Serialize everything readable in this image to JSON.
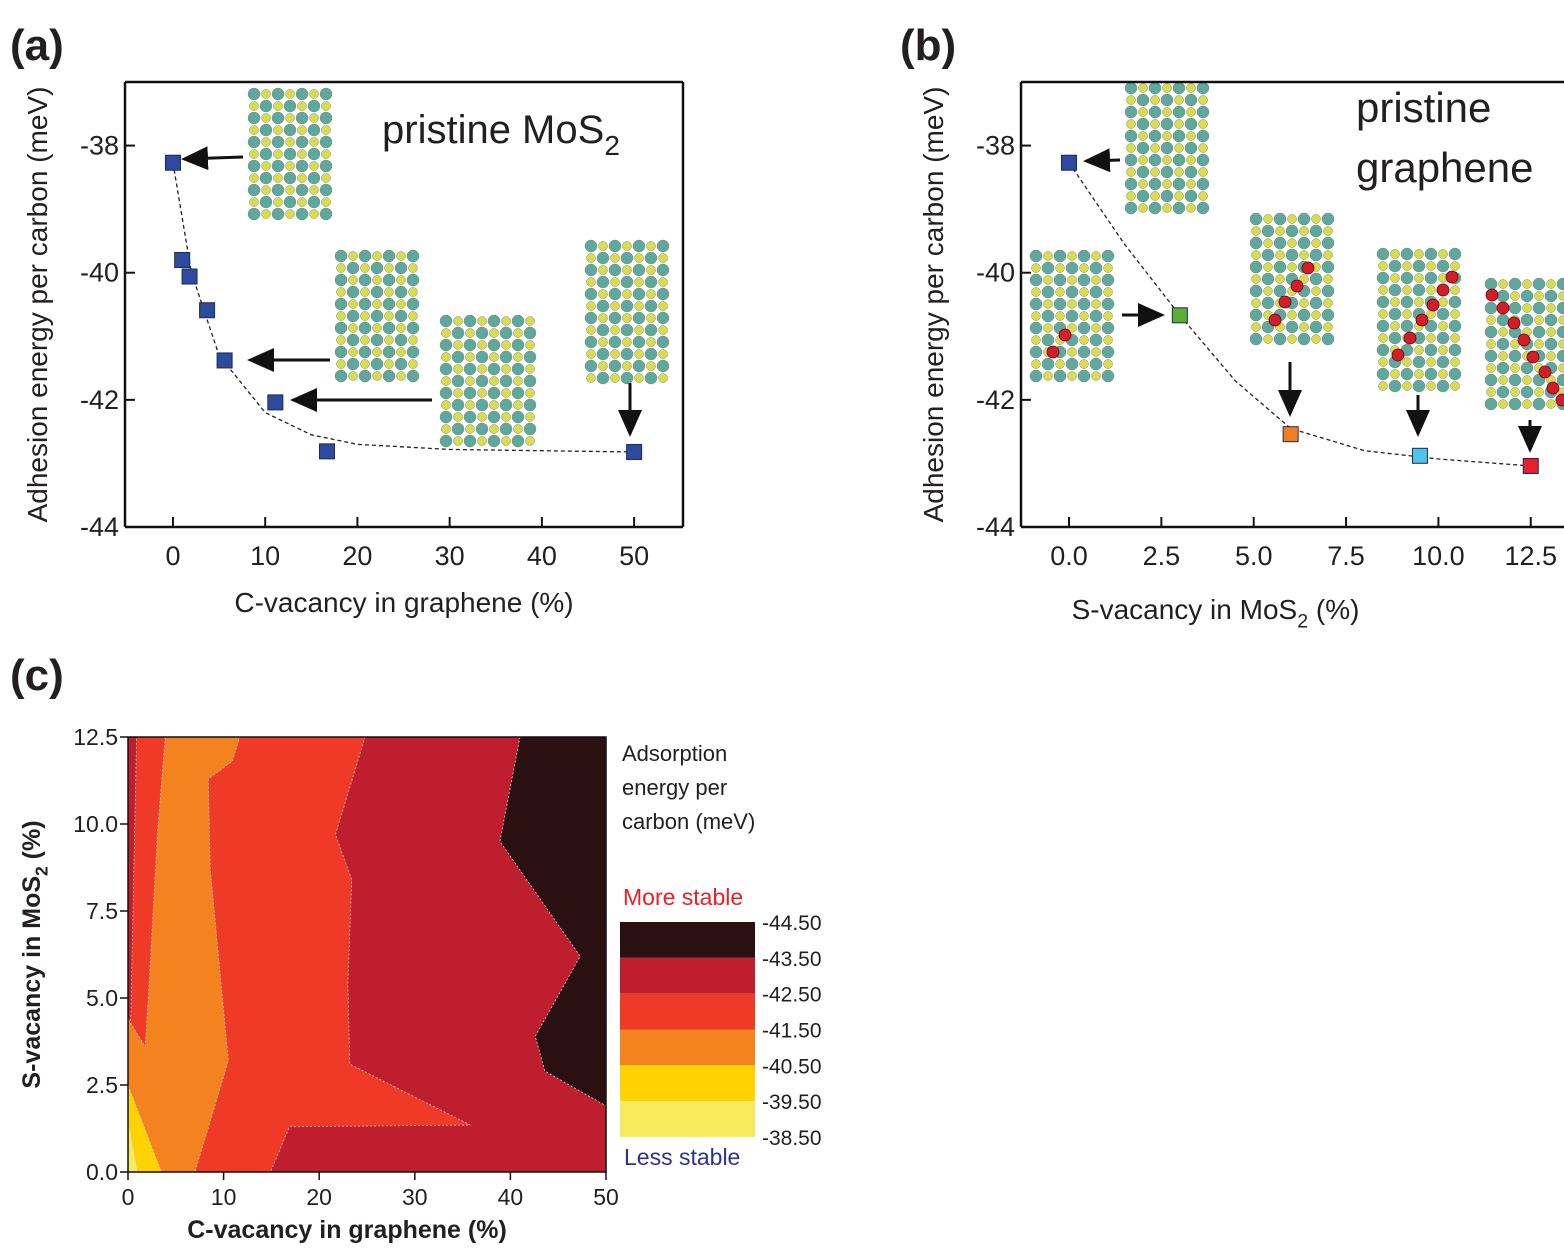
{
  "chart_data": [
    {
      "type": "scatter",
      "panel": "(a)",
      "annotation": {
        "text": "pristine MoS",
        "sub": "2"
      },
      "xlabel": {
        "text": "C-vacancy in graphene (%)"
      },
      "ylabel": {
        "text": "Adhesion energy per carbon (meV)"
      },
      "x": [
        0,
        1,
        1.8,
        3.7,
        5.6,
        11.1,
        16.7,
        50
      ],
      "series": [
        {
          "color": "#2e4a9e",
          "values": [
            -38.27,
            -39.8,
            -40.06,
            -40.59,
            -41.38,
            -42.04,
            -42.81,
            -42.82
          ]
        }
      ],
      "fit": {
        "x": [
          0,
          2,
          5,
          10,
          15,
          20,
          30,
          50
        ],
        "values": [
          -38.27,
          -40.0,
          -41.3,
          -42.2,
          -42.55,
          -42.7,
          -42.78,
          -42.82
        ]
      },
      "xlim": [
        -5.2,
        55.3
      ],
      "ylim": [
        -44,
        -37
      ],
      "xticks": [
        0,
        10,
        20,
        30,
        40,
        50
      ],
      "yticks": [
        -44,
        -42,
        -40,
        -38
      ]
    },
    {
      "type": "scatter",
      "panel": "(b)",
      "annotation": [
        "pristine",
        "graphene"
      ],
      "xlabel": {
        "text": "S-vacancy in MoS",
        "sub": "2",
        "after": " (%)"
      },
      "ylabel": {
        "text": "Adhesion energy per carbon (meV)"
      },
      "x": [
        0,
        3.0,
        6.0,
        9.5,
        12.5
      ],
      "series": [
        {
          "colors": [
            "#2e4a9e",
            "#5ab031",
            "#f07f22",
            "#4fc3e8",
            "#e8202a"
          ],
          "values": [
            -38.27,
            -40.67,
            -42.54,
            -42.88,
            -43.04
          ]
        }
      ],
      "fit": {
        "x": [
          0,
          1.5,
          3.0,
          4.5,
          6.0,
          8.0,
          10.0,
          12.5
        ],
        "values": [
          -38.27,
          -39.55,
          -40.67,
          -41.7,
          -42.45,
          -42.8,
          -42.93,
          -43.04
        ]
      },
      "xlim": [
        -1.3,
        13.4
      ],
      "ylim": [
        -44,
        -37
      ],
      "xticks": [
        {
          "value": 0,
          "label": "0.0"
        },
        2.5,
        {
          "value": 5,
          "label": "5.0"
        },
        7.5,
        {
          "value": 10,
          "label": "10.0"
        },
        12.5
      ],
      "yticks": [
        -44,
        -42,
        -40,
        -38
      ]
    },
    {
      "type": "contour",
      "panel": "(c)",
      "xlabel": {
        "text": "C-vacancy in graphene (%)"
      },
      "ylabel": {
        "text": "S-vacancy in MoS",
        "sub": "2",
        "after": " (%)"
      },
      "xlim": [
        0,
        50
      ],
      "ylim": [
        0,
        12.5
      ],
      "xticks": [
        0,
        10,
        20,
        30,
        40,
        50
      ],
      "yticks": [
        {
          "value": 0,
          "label": "0.0"
        },
        2.5,
        {
          "value": 5,
          "label": "5.0"
        },
        7.5,
        {
          "value": 10,
          "label": "10.0"
        },
        12.5
      ],
      "regions": [
        {
          "color": "#be1e2d",
          "points": [
            [
              0,
              0
            ],
            [
              50,
              0
            ],
            [
              50,
              12.5
            ],
            [
              0,
              12.5
            ]
          ]
        },
        {
          "color": "#2b1012",
          "points": [
            [
              41,
              12.5
            ],
            [
              38.9,
              9.5
            ],
            [
              47.3,
              6.2
            ],
            [
              42.6,
              3.9
            ],
            [
              43.6,
              2.9
            ],
            [
              50,
              1.9
            ],
            [
              50,
              12.5
            ]
          ]
        },
        {
          "color": "#ee3a27",
          "points": [
            [
              0,
              0
            ],
            [
              14.9,
              0
            ],
            [
              16.9,
              1.3
            ],
            [
              35.8,
              1.35
            ],
            [
              23.2,
              3.1
            ],
            [
              23.0,
              5.4
            ],
            [
              23.4,
              8.4
            ],
            [
              21.7,
              9.7
            ],
            [
              24.8,
              12.5
            ],
            [
              0.9,
              12.5
            ],
            [
              0.3,
              4.5
            ],
            [
              0,
              3.6
            ]
          ]
        },
        {
          "color": "#f4821f",
          "points": [
            [
              0,
              0
            ],
            [
              7,
              0
            ],
            [
              10.5,
              3.2
            ],
            [
              8.6,
              8.7
            ],
            [
              8.4,
              11.3
            ],
            [
              10.9,
              11.8
            ],
            [
              11.7,
              12.5
            ],
            [
              3.9,
              12.5
            ],
            [
              3.1,
              9.8
            ],
            [
              2.1,
              4.9
            ],
            [
              1.8,
              3.6
            ],
            [
              0,
              4.4
            ]
          ]
        },
        {
          "color": "#ffd200",
          "points": [
            [
              0,
              0
            ],
            [
              3.5,
              0
            ],
            [
              0,
              2.5
            ]
          ]
        },
        {
          "color": "#f7ea5c",
          "points": [
            [
              0,
              0
            ],
            [
              1.0,
              0
            ],
            [
              0,
              1.5
            ]
          ]
        }
      ],
      "colorbar": {
        "title": [
          "Adsorption",
          "energy per",
          "carbon (meV)"
        ],
        "top_note": "More stable",
        "bottom_note": "Less stable",
        "ticks": [
          {
            "value": -44.5,
            "label": "-44.50"
          },
          {
            "value": -43.5,
            "label": "-43.50"
          },
          {
            "value": -42.5,
            "label": "-42.50"
          },
          {
            "value": -41.5,
            "label": "-41.50"
          },
          {
            "value": -40.5,
            "label": "-40.50"
          },
          {
            "value": -39.5,
            "label": "-39.50"
          },
          {
            "value": -38.5,
            "label": "-38.50"
          }
        ],
        "colors": [
          "#2b1012",
          "#be1e2d",
          "#ee3a27",
          "#f4821f",
          "#ffd200",
          "#f7ea5c"
        ]
      }
    }
  ]
}
